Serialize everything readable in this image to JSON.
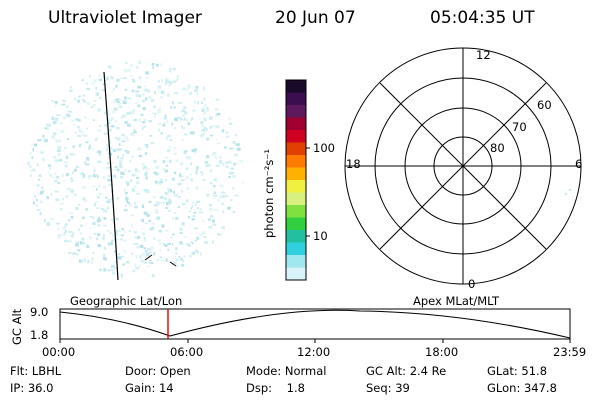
{
  "header": {
    "title": "Ultraviolet Imager",
    "date": "20 Jun 07",
    "time": "05:04:35 UT"
  },
  "colorbar": {
    "unit_label": "photon cm⁻²s⁻¹",
    "tick_labels": [
      "100",
      "10"
    ],
    "colors": [
      "#1a0a2a",
      "#3b0f4f",
      "#5c1a5c",
      "#a00030",
      "#d00020",
      "#e04000",
      "#ff7a00",
      "#ffb000",
      "#f0f040",
      "#d8f080",
      "#80e040",
      "#30d040",
      "#20c0a0",
      "#30d0e0",
      "#a0e8f0",
      "#d8f4f8"
    ]
  },
  "polar_plot": {
    "mlt_labels": [
      "12",
      "18",
      "6",
      "0"
    ],
    "mlat_labels": [
      "60",
      "70",
      "80"
    ]
  },
  "map_labels": {
    "left": "Geographic Lat/Lon",
    "right": "Apex MLat/MLT"
  },
  "orbit_plot": {
    "ylabel": "GC Alt",
    "y_ticks": [
      "9.0",
      "1.8"
    ],
    "x_ticks": [
      "00:00",
      "06:00",
      "12:00",
      "18:00",
      "23:59"
    ],
    "current_time_marker": "05:04",
    "marker_color": "#e00000"
  },
  "info": {
    "row1": {
      "filter": "Flt: LBHL",
      "door": "Door: Open",
      "mode": "Mode: Normal",
      "gc_alt": "GC Alt: 2.4 Re",
      "glat": "GLat:  51.8"
    },
    "row2": {
      "ip": "IP: 36.0",
      "gain": "Gain: 14",
      "dsp": "Dsp:    1.8",
      "seq": "Seq: 39",
      "glon": "GLon: 347.8"
    }
  }
}
